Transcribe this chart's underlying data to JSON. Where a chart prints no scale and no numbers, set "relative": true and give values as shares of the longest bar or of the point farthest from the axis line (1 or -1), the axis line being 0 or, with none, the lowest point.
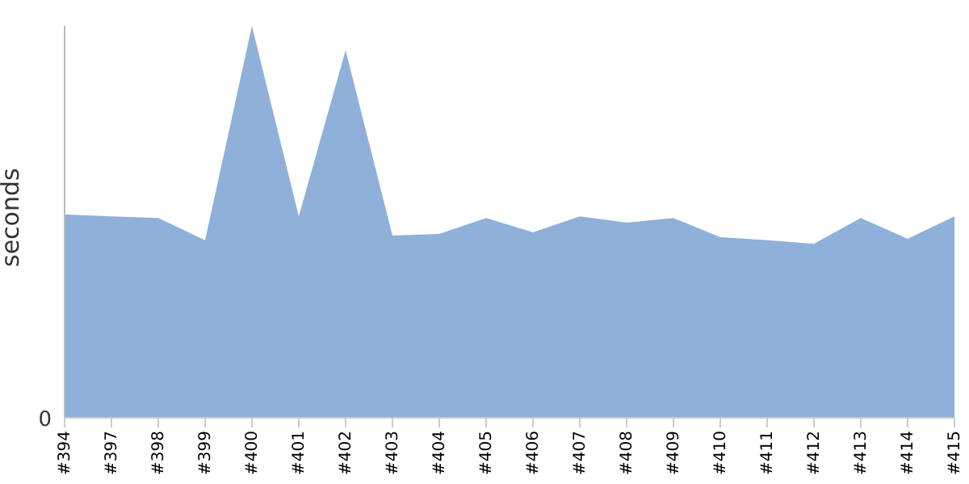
{
  "chart_data": {
    "type": "area",
    "ylabel": "seconds",
    "relative": true,
    "annotations": [
      "0"
    ],
    "categories": [
      "#394",
      "#397",
      "#398",
      "#399",
      "#400",
      "#401",
      "#402",
      "#403",
      "#404",
      "#405",
      "#406",
      "#407",
      "#408",
      "#409",
      "#410",
      "#411",
      "#412",
      "#413",
      "#414",
      "#415"
    ],
    "series": [
      {
        "color": "#8fb1d9",
        "values": [
          0.519,
          0.514,
          0.51,
          0.453,
          1,
          0.514,
          0.938,
          0.465,
          0.469,
          0.51,
          0.473,
          0.514,
          0.498,
          0.51,
          0.461,
          0.453,
          0.444,
          0.51,
          0.457,
          0.514
        ]
      }
    ],
    "grid": false,
    "legend": false
  }
}
